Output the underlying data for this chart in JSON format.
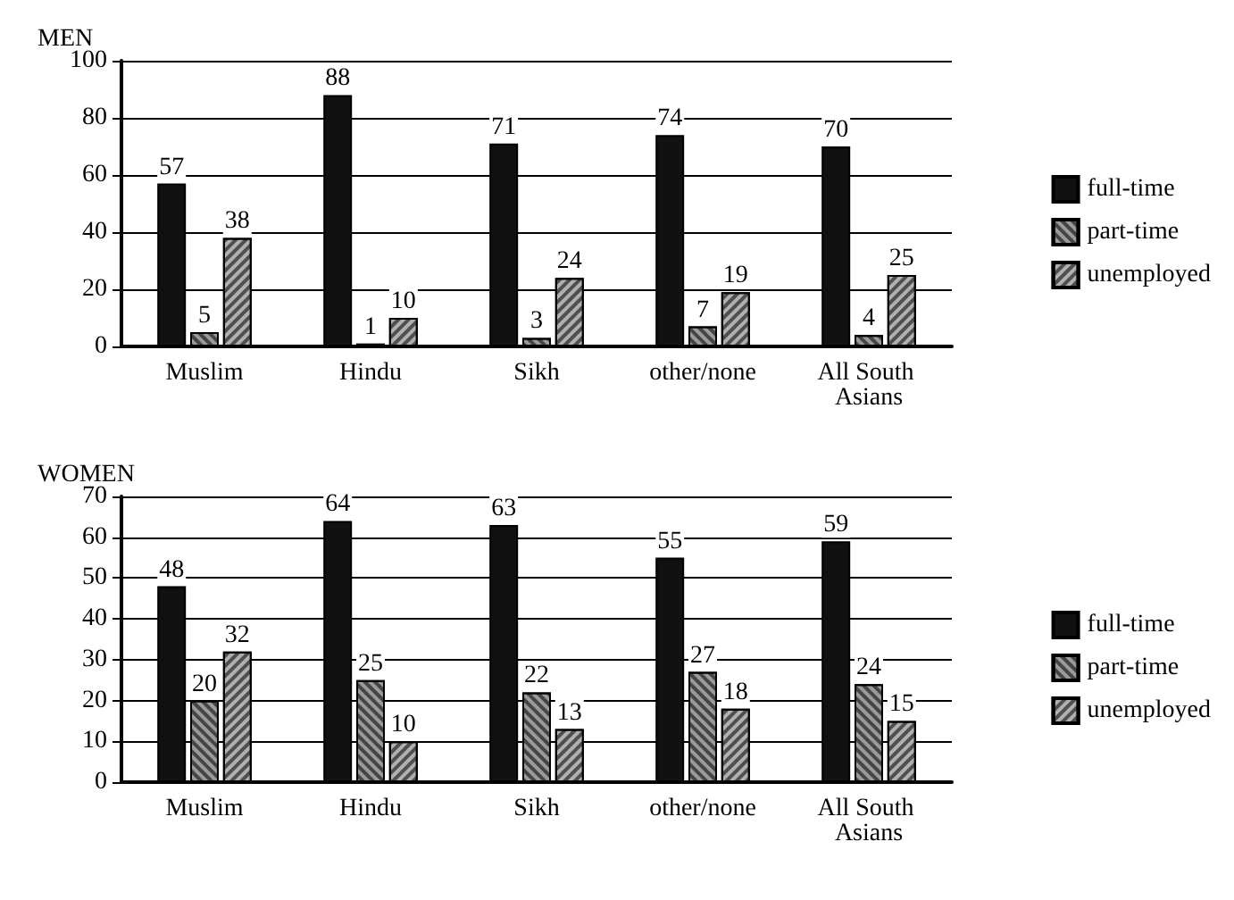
{
  "chart_data": [
    {
      "type": "bar",
      "title": "MEN",
      "categories": [
        "Muslim",
        "Hindu",
        "Sikh",
        "other/none",
        "All South Asians"
      ],
      "series": [
        {
          "name": "full-time",
          "color": "#111111",
          "values": [
            57,
            88,
            71,
            74,
            70
          ]
        },
        {
          "name": "part-time",
          "color": "#9a9a9a",
          "values": [
            5,
            1,
            3,
            7,
            4
          ]
        },
        {
          "name": "unemployed",
          "color": "#b0b0b0",
          "values": [
            38,
            10,
            24,
            19,
            25
          ]
        }
      ],
      "ylim": [
        0,
        100
      ],
      "yticks": [
        0,
        20,
        40,
        60,
        80,
        100
      ],
      "grid": "y",
      "legend": "right",
      "data_labels": true
    },
    {
      "type": "bar",
      "title": "WOMEN",
      "categories": [
        "Muslim",
        "Hindu",
        "Sikh",
        "other/none",
        "All South Asians"
      ],
      "series": [
        {
          "name": "full-time",
          "color": "#111111",
          "values": [
            48,
            64,
            63,
            55,
            59
          ]
        },
        {
          "name": "part-time",
          "color": "#9a9a9a",
          "values": [
            20,
            25,
            22,
            27,
            24
          ]
        },
        {
          "name": "unemployed",
          "color": "#b0b0b0",
          "values": [
            32,
            10,
            13,
            18,
            15
          ]
        }
      ],
      "ylim": [
        0,
        70
      ],
      "yticks": [
        0,
        10,
        20,
        30,
        40,
        50,
        60,
        70
      ],
      "grid": "y",
      "legend": "right",
      "data_labels": true
    }
  ]
}
